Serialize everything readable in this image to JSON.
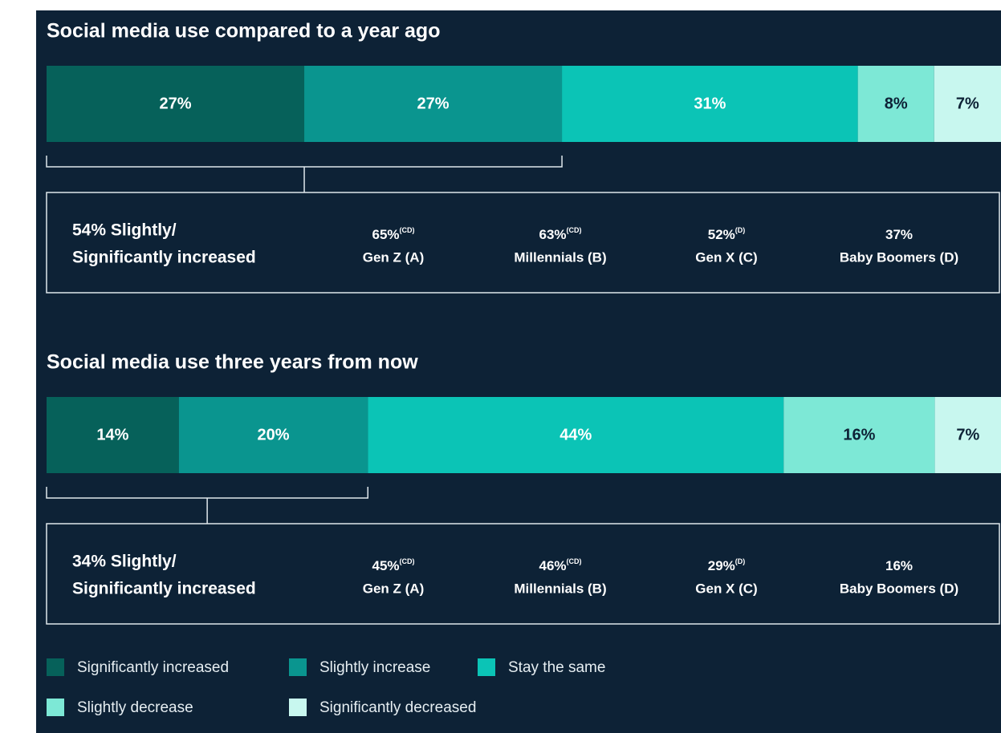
{
  "chart_data": [
    {
      "type": "stacked-bar",
      "title": "Social media use compared to a year ago",
      "series": [
        {
          "name": "Significantly increased",
          "color": "#06615a",
          "label_color": "#ffffff",
          "values": [
            27
          ],
          "value_labels": [
            "27%"
          ]
        },
        {
          "name": "Slightly increase",
          "color": "#0a958f",
          "label_color": "#ffffff",
          "values": [
            27
          ],
          "value_labels": [
            "27%"
          ]
        },
        {
          "name": "Stay the same",
          "color": "#0bc4b6",
          "label_color": "#ffffff",
          "values": [
            31
          ],
          "value_labels": [
            "31%"
          ]
        },
        {
          "name": "Slightly decrease",
          "color": "#7de8d6",
          "label_color": "#0d2236",
          "values": [
            8
          ],
          "value_labels": [
            "8%"
          ]
        },
        {
          "name": "Significantly decreased",
          "color": "#c8f7ef",
          "label_color": "#0d2236",
          "values": [
            7
          ],
          "value_labels": [
            "7%"
          ]
        }
      ],
      "callout": {
        "summary": [
          "54% Slightly/",
          "Significantly increased"
        ],
        "groups": [
          {
            "label": "65%",
            "note": "(CD)",
            "name": "Gen Z (A)"
          },
          {
            "label": "63%",
            "note": "(CD)",
            "name": "Millennials (B)"
          },
          {
            "label": "52%",
            "note": "(D)",
            "name": "Gen X (C)"
          },
          {
            "label": "37%",
            "name": "Baby Boomers (D)"
          }
        ]
      }
    },
    {
      "type": "stacked-bar",
      "title": "Social media use three years from now",
      "series": [
        {
          "name": "Significantly increased",
          "color": "#06615a",
          "label_color": "#ffffff",
          "values": [
            14
          ],
          "value_labels": [
            "14%"
          ]
        },
        {
          "name": "Slightly increase",
          "color": "#0a958f",
          "label_color": "#ffffff",
          "values": [
            20
          ],
          "value_labels": [
            "20%"
          ]
        },
        {
          "name": "Stay the same",
          "color": "#0bc4b6",
          "label_color": "#ffffff",
          "values": [
            44
          ],
          "value_labels": [
            "44%"
          ]
        },
        {
          "name": "Slightly decrease",
          "color": "#7de8d6",
          "label_color": "#0d2236",
          "values": [
            16
          ],
          "value_labels": [
            "16%"
          ]
        },
        {
          "name": "Significantly decreased",
          "color": "#c8f7ef",
          "label_color": "#0d2236",
          "values": [
            7
          ],
          "value_labels": [
            "7%"
          ]
        }
      ],
      "callout": {
        "summary": [
          "34% Slightly/",
          "Significantly increased"
        ],
        "groups": [
          {
            "label": "45%",
            "note": "(CD)",
            "name": "Gen Z (A)"
          },
          {
            "label": "46%",
            "note": "(CD)",
            "name": "Millennials (B)"
          },
          {
            "label": "29%",
            "note": "(D)",
            "name": "Gen X (C)"
          },
          {
            "label": "16%",
            "name": "Baby Boomers (D)"
          }
        ]
      }
    }
  ]
}
